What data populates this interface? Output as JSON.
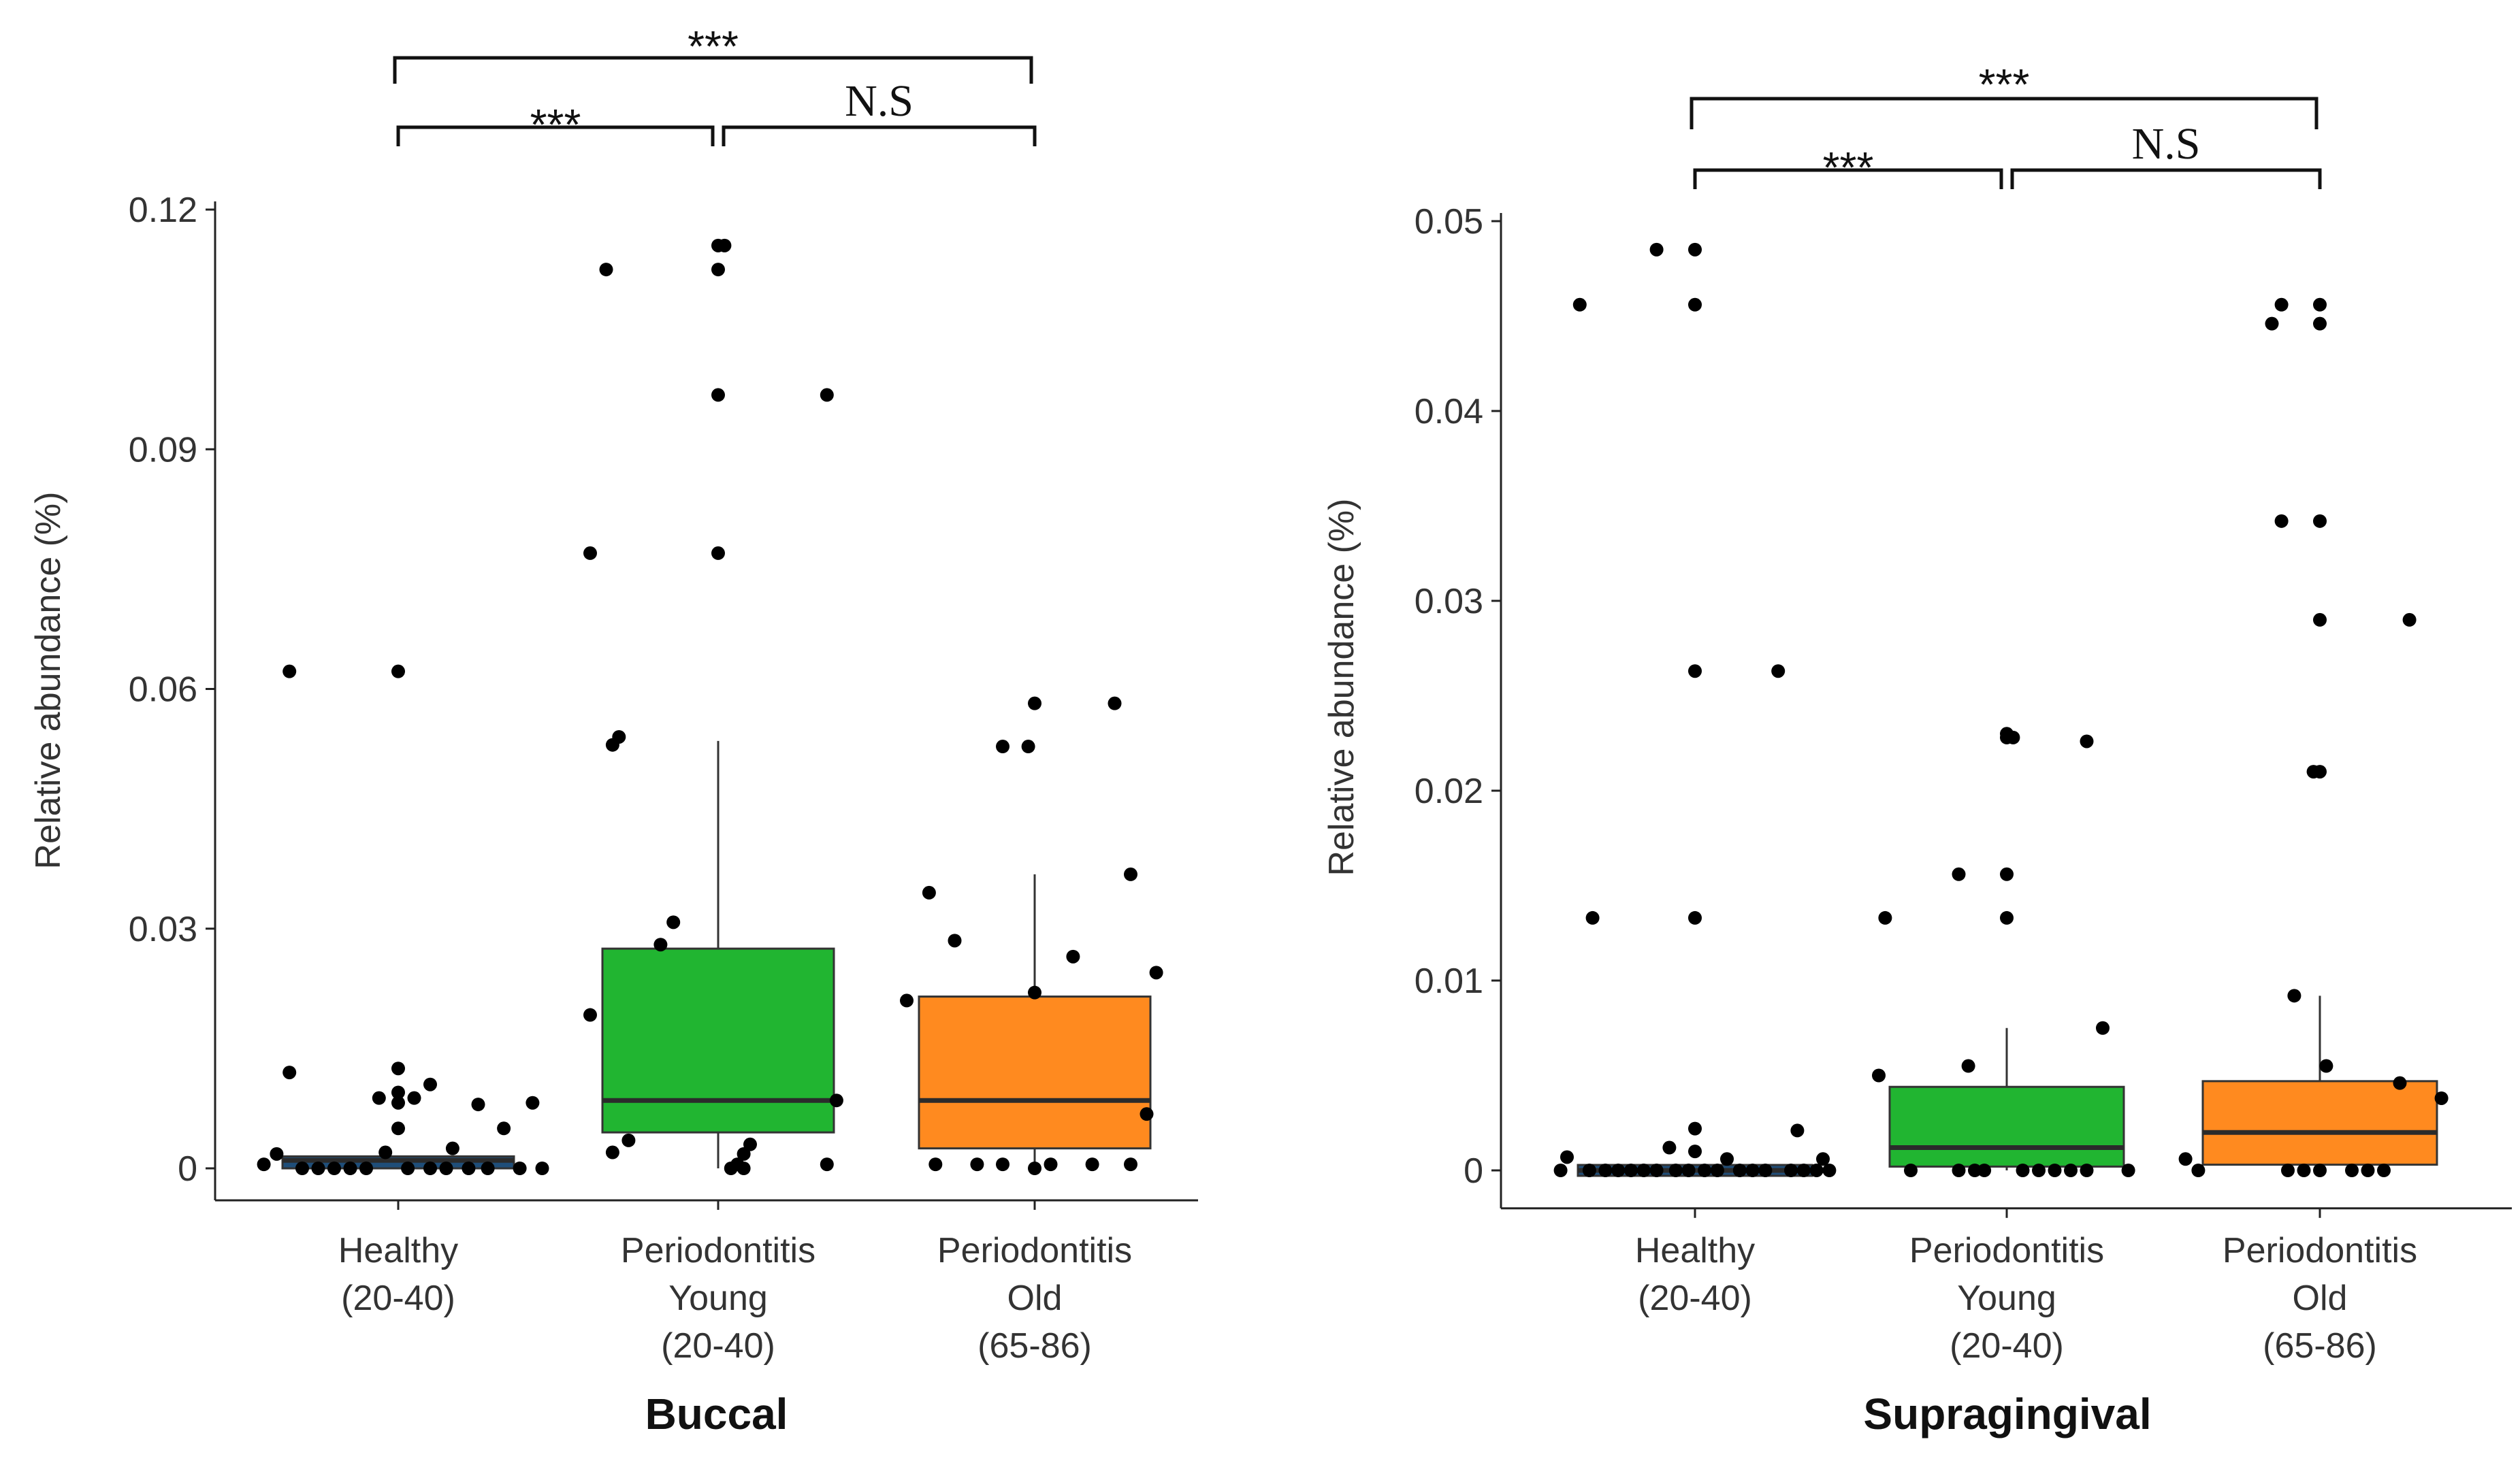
{
  "chart_data": [
    {
      "type": "box",
      "title": "Buccal",
      "ylabel": "Relative abundance (%)",
      "ylim": [
        -0.004,
        0.12
      ],
      "yticks": [
        0,
        0.03,
        0.06,
        0.09,
        0.12
      ],
      "ytick_labels": [
        "0",
        "0.03",
        "0.06",
        "0.09",
        "0.12"
      ],
      "groups": [
        {
          "label_lines": [
            "Healthy",
            "(20-40)"
          ],
          "color": "#1f4e79",
          "box": {
            "q1": 0.0,
            "median": 0.001,
            "q3": 0.0015,
            "whisker_low": 0.0,
            "whisker_high": 0.0015
          },
          "points": [
            [
              -0.42,
              0.0005
            ],
            [
              -0.38,
              0.0018
            ],
            [
              -0.34,
              0.0622
            ],
            [
              -0.34,
              0.012
            ],
            [
              -0.3,
              0.0
            ],
            [
              -0.25,
              0.0
            ],
            [
              -0.2,
              0.0
            ],
            [
              -0.15,
              0.0
            ],
            [
              -0.1,
              0.0
            ],
            [
              -0.06,
              0.0088
            ],
            [
              -0.04,
              0.002
            ],
            [
              0.0,
              0.0622
            ],
            [
              0.0,
              0.0125
            ],
            [
              0.0,
              0.0095
            ],
            [
              0.0,
              0.0082
            ],
            [
              0.0,
              0.005
            ],
            [
              0.03,
              0.0
            ],
            [
              0.05,
              0.0088
            ],
            [
              0.1,
              0.0
            ],
            [
              0.1,
              0.0105
            ],
            [
              0.15,
              0.0
            ],
            [
              0.17,
              0.0025
            ],
            [
              0.22,
              0.0
            ],
            [
              0.25,
              0.008
            ],
            [
              0.28,
              0.0
            ],
            [
              0.33,
              0.005
            ],
            [
              0.38,
              0.0
            ],
            [
              0.42,
              0.0082
            ],
            [
              0.45,
              0.0
            ]
          ]
        },
        {
          "label_lines": [
            "Periodontitis",
            "Young",
            "(20-40)"
          ],
          "color": "#21b531",
          "box": {
            "q1": 0.0045,
            "median": 0.0085,
            "q3": 0.0275,
            "whisker_low": 0.0,
            "whisker_high": 0.0535
          },
          "points": [
            [
              -0.4,
              0.0192
            ],
            [
              -0.4,
              0.077
            ],
            [
              -0.35,
              0.1125
            ],
            [
              -0.33,
              0.053
            ],
            [
              -0.31,
              0.054
            ],
            [
              -0.33,
              0.002
            ],
            [
              -0.28,
              0.0035
            ],
            [
              -0.18,
              0.028
            ],
            [
              -0.14,
              0.0308
            ],
            [
              0.0,
              0.1155
            ],
            [
              0.0,
              0.1125
            ],
            [
              0.0,
              0.0968
            ],
            [
              0.0,
              0.077
            ],
            [
              0.02,
              0.1155
            ],
            [
              0.04,
              0.0
            ],
            [
              0.06,
              0.0005
            ],
            [
              0.08,
              0.0
            ],
            [
              0.1,
              0.003
            ],
            [
              0.08,
              0.0018
            ],
            [
              0.34,
              0.0968
            ],
            [
              0.34,
              0.0005
            ],
            [
              0.37,
              0.0085
            ]
          ]
        },
        {
          "label_lines": [
            "Periodontitis",
            "Old",
            "(65-86)"
          ],
          "color": "#ff8a1f",
          "box": {
            "q1": 0.0025,
            "median": 0.0085,
            "q3": 0.0215,
            "whisker_low": 0.0,
            "whisker_high": 0.0368
          },
          "points": [
            [
              -0.4,
              0.021
            ],
            [
              -0.33,
              0.0345
            ],
            [
              -0.31,
              0.0005
            ],
            [
              -0.25,
              0.0285
            ],
            [
              -0.18,
              0.0005
            ],
            [
              -0.1,
              0.0005
            ],
            [
              -0.1,
              0.0528
            ],
            [
              -0.02,
              0.0528
            ],
            [
              0.0,
              0.0582
            ],
            [
              0.0,
              0.022
            ],
            [
              0.0,
              0.0
            ],
            [
              0.05,
              0.0005
            ],
            [
              0.12,
              0.0265
            ],
            [
              0.18,
              0.0005
            ],
            [
              0.25,
              0.0582
            ],
            [
              0.3,
              0.0368
            ],
            [
              0.3,
              0.0005
            ],
            [
              0.35,
              0.0068
            ],
            [
              0.38,
              0.0245
            ]
          ]
        }
      ],
      "brackets": [
        {
          "from_group": 0,
          "to_group": 2,
          "label": "***"
        },
        {
          "from_group": 0,
          "to_group": 1,
          "label": "***"
        },
        {
          "from_group": 1,
          "to_group": 2,
          "label": "N.S"
        }
      ]
    },
    {
      "type": "box",
      "title": "Supragingival",
      "ylabel": "Relative abundance (%)",
      "ylim": [
        -0.002,
        0.05
      ],
      "yticks": [
        0,
        0.01,
        0.02,
        0.03,
        0.04,
        0.05
      ],
      "ytick_labels": [
        "0",
        "0.01",
        "0.02",
        "0.03",
        "0.04",
        "0.05"
      ],
      "groups": [
        {
          "label_lines": [
            "Healthy",
            "(20-40)"
          ],
          "color": "#1f4e79",
          "box": {
            "q1": 0.0,
            "median": 0.0,
            "q3": 0.0,
            "whisker_low": 0.0,
            "whisker_high": 0.0
          },
          "points": [
            [
              -0.42,
              0.0
            ],
            [
              -0.4,
              0.0007
            ],
            [
              -0.36,
              0.0456
            ],
            [
              -0.33,
              0.0
            ],
            [
              -0.32,
              0.0133
            ],
            [
              -0.28,
              0.0
            ],
            [
              -0.24,
              0.0
            ],
            [
              -0.2,
              0.0
            ],
            [
              -0.16,
              0.0
            ],
            [
              -0.12,
              0.0
            ],
            [
              -0.12,
              0.0485
            ],
            [
              -0.08,
              0.0012
            ],
            [
              -0.06,
              0.0
            ],
            [
              -0.02,
              0.0
            ],
            [
              0.0,
              0.0485
            ],
            [
              0.0,
              0.0456
            ],
            [
              0.0,
              0.0263
            ],
            [
              0.0,
              0.0133
            ],
            [
              0.0,
              0.0022
            ],
            [
              0.0,
              0.001
            ],
            [
              0.03,
              0.0
            ],
            [
              0.07,
              0.0
            ],
            [
              0.1,
              0.0006
            ],
            [
              0.14,
              0.0
            ],
            [
              0.18,
              0.0
            ],
            [
              0.22,
              0.0
            ],
            [
              0.26,
              0.0263
            ],
            [
              0.3,
              0.0
            ],
            [
              0.32,
              0.0021
            ],
            [
              0.34,
              0.0
            ],
            [
              0.38,
              0.0
            ],
            [
              0.4,
              0.0006
            ],
            [
              0.42,
              0.0
            ]
          ]
        },
        {
          "label_lines": [
            "Periodontitis",
            "Young",
            "(20-40)"
          ],
          "color": "#21b531",
          "box": {
            "q1": 0.0002,
            "median": 0.0012,
            "q3": 0.0044,
            "whisker_low": 0.0,
            "whisker_high": 0.0075
          },
          "points": [
            [
              -0.4,
              0.005
            ],
            [
              -0.38,
              0.0133
            ],
            [
              -0.3,
              0.0
            ],
            [
              -0.15,
              0.0
            ],
            [
              -0.15,
              0.0156
            ],
            [
              -0.12,
              0.0055
            ],
            [
              -0.1,
              0.0
            ],
            [
              -0.07,
              0.0
            ],
            [
              0.0,
              0.023
            ],
            [
              0.0,
              0.0228
            ],
            [
              0.0,
              0.0156
            ],
            [
              0.0,
              0.0133
            ],
            [
              0.02,
              0.0228
            ],
            [
              0.05,
              0.0
            ],
            [
              0.1,
              0.0
            ],
            [
              0.15,
              0.0
            ],
            [
              0.2,
              0.0
            ],
            [
              0.25,
              0.0226
            ],
            [
              0.25,
              0.0
            ],
            [
              0.3,
              0.0075
            ],
            [
              0.38,
              0.0
            ]
          ]
        },
        {
          "label_lines": [
            "Periodontitis",
            "Old",
            "(65-86)"
          ],
          "color": "#ff8a1f",
          "box": {
            "q1": 0.0003,
            "median": 0.002,
            "q3": 0.0047,
            "whisker_low": 0.0,
            "whisker_high": 0.0092
          },
          "points": [
            [
              -0.42,
              0.0006
            ],
            [
              -0.38,
              0.0
            ],
            [
              -0.15,
              0.0446
            ],
            [
              -0.12,
              0.0456
            ],
            [
              -0.12,
              0.0342
            ],
            [
              -0.1,
              0.0
            ],
            [
              -0.08,
              0.0092
            ],
            [
              -0.05,
              0.0
            ],
            [
              0.0,
              0.0456
            ],
            [
              0.0,
              0.0446
            ],
            [
              0.0,
              0.0342
            ],
            [
              0.0,
              0.029
            ],
            [
              0.0,
              0.021
            ],
            [
              0.02,
              0.0055
            ],
            [
              0.0,
              0.0
            ],
            [
              -0.02,
              0.021
            ],
            [
              0.1,
              0.0
            ],
            [
              0.15,
              0.0
            ],
            [
              0.2,
              0.0
            ],
            [
              0.25,
              0.0046
            ],
            [
              0.28,
              0.029
            ],
            [
              0.38,
              0.0038
            ]
          ]
        }
      ],
      "brackets": [
        {
          "from_group": 0,
          "to_group": 2,
          "label": "***"
        },
        {
          "from_group": 0,
          "to_group": 1,
          "label": "***"
        },
        {
          "from_group": 1,
          "to_group": 2,
          "label": "N.S"
        }
      ]
    }
  ]
}
